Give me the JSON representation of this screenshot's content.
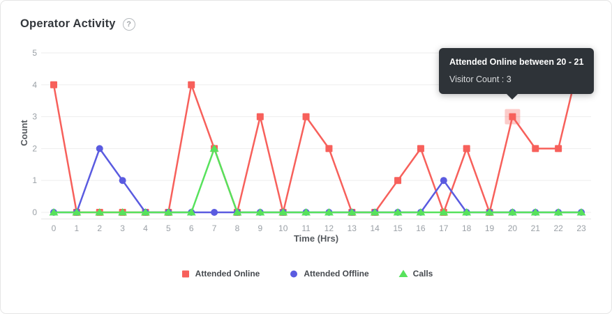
{
  "header": {
    "title": "Operator Activity",
    "help_glyph": "?"
  },
  "chart_data": {
    "type": "line",
    "title": "Operator Activity",
    "x": [
      0,
      1,
      2,
      3,
      4,
      5,
      6,
      7,
      8,
      9,
      10,
      11,
      12,
      13,
      14,
      15,
      16,
      17,
      18,
      19,
      20,
      21,
      22,
      23
    ],
    "xlabel": "Time (Hrs)",
    "ylabel": "Count",
    "ylim": [
      0,
      5
    ],
    "yticks": [
      0,
      1,
      2,
      3,
      4,
      5
    ],
    "grid": true,
    "legend_position": "bottom",
    "series": [
      {
        "name": "Attended Online",
        "color": "#f7605b",
        "marker": "square",
        "values": [
          4,
          0,
          0,
          0,
          0,
          0,
          4,
          2,
          0,
          3,
          0,
          3,
          2,
          0,
          0,
          1,
          2,
          0,
          2,
          0,
          3,
          2,
          2,
          5
        ]
      },
      {
        "name": "Attended Offline",
        "color": "#5a5be0",
        "marker": "circle",
        "values": [
          0,
          0,
          2,
          1,
          0,
          0,
          0,
          0,
          0,
          0,
          0,
          0,
          0,
          0,
          0,
          0,
          0,
          1,
          0,
          0,
          0,
          0,
          0,
          0
        ]
      },
      {
        "name": "Calls",
        "color": "#57e25c",
        "marker": "triangle",
        "values": [
          0,
          0,
          0,
          0,
          0,
          0,
          0,
          2,
          0,
          0,
          0,
          0,
          0,
          0,
          0,
          0,
          0,
          0,
          0,
          0,
          0,
          0,
          0,
          0
        ]
      }
    ],
    "highlight": {
      "series": "Attended Online",
      "x": 20,
      "y": 3
    }
  },
  "tooltip": {
    "title": "Attended Online between 20 - 21",
    "body": "Visitor Count : 3"
  },
  "style": {
    "grid_color": "#ededed",
    "axis_line_color": "#e6e6e6",
    "highlight_opacity": 0.32
  }
}
